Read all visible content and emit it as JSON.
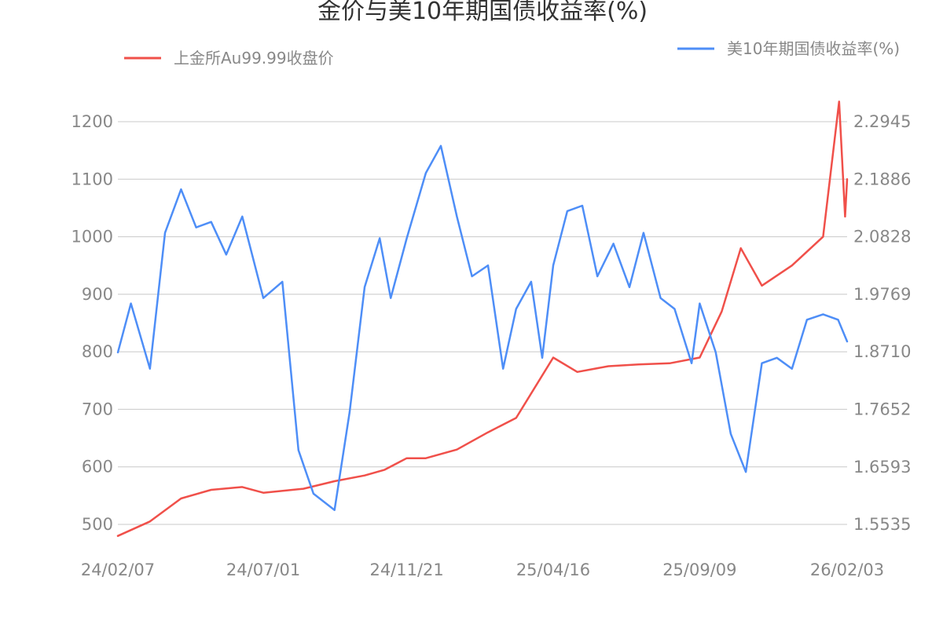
{
  "chart_data": {
    "type": "line",
    "title": "金价与美10年期国债收益率(%)",
    "x_tick_labels": [
      "24/02/07",
      "24/07/01",
      "24/11/21",
      "25/04/16",
      "25/09/09",
      "26/02/03"
    ],
    "left_axis": {
      "ticks": [
        "500",
        "600",
        "700",
        "800",
        "900",
        "1000",
        "1100",
        "1200"
      ],
      "ylim": [
        500,
        1200
      ]
    },
    "right_axis": {
      "ticks": [
        "1.5535",
        "1.6593",
        "1.7652",
        "1.8710",
        "1.9769",
        "2.0828",
        "2.1886",
        "2.2945"
      ],
      "ylim": [
        1.5535,
        2.2945
      ]
    },
    "grid": true,
    "legend_placement": "top",
    "series": [
      {
        "name": "上金所Au99.99收盘价",
        "axis": "left",
        "color": "#f0504a",
        "x": [
          "24/02/07",
          "24/03/10",
          "24/04/10",
          "24/05/10",
          "24/06/10",
          "24/07/01",
          "24/08/10",
          "24/09/10",
          "24/10/10",
          "24/10/30",
          "24/11/21",
          "24/12/10",
          "25/01/10",
          "25/02/10",
          "25/03/10",
          "25/04/16",
          "25/05/10",
          "25/06/10",
          "25/07/10",
          "25/08/10",
          "25/09/09",
          "25/10/01",
          "25/10/20",
          "25/11/10",
          "25/12/10",
          "26/01/10",
          "26/01/26",
          "26/02/01",
          "26/02/03"
        ],
        "values": [
          480,
          505,
          545,
          560,
          565,
          555,
          562,
          575,
          585,
          595,
          615,
          615,
          630,
          660,
          685,
          790,
          765,
          775,
          778,
          780,
          790,
          870,
          980,
          915,
          950,
          1000,
          1235,
          1035,
          1100
        ]
      },
      {
        "name": "美10年期国债收益率(%)",
        "axis": "right",
        "color": "#4e8ef7",
        "x": [
          "24/02/07",
          "24/02/20",
          "24/03/10",
          "24/03/25",
          "24/04/10",
          "24/04/25",
          "24/05/10",
          "24/05/25",
          "24/06/10",
          "24/07/01",
          "24/07/20",
          "24/08/05",
          "24/08/20",
          "24/09/10",
          "24/09/25",
          "24/10/10",
          "24/10/25",
          "24/11/05",
          "24/11/21",
          "24/12/10",
          "24/12/25",
          "25/01/10",
          "25/01/25",
          "25/02/10",
          "25/02/25",
          "25/03/10",
          "25/03/25",
          "25/04/05",
          "25/04/16",
          "25/04/30",
          "25/05/15",
          "25/05/30",
          "25/06/15",
          "25/07/01",
          "25/07/15",
          "25/08/01",
          "25/08/15",
          "25/09/01",
          "25/09/09",
          "25/09/25",
          "25/10/10",
          "25/10/25",
          "25/11/10",
          "25/11/25",
          "25/12/10",
          "25/12/25",
          "26/01/10",
          "26/01/25",
          "26/02/03"
        ],
        "values": [
          1.87,
          1.96,
          1.84,
          2.09,
          2.17,
          2.1,
          2.11,
          2.05,
          2.12,
          1.97,
          2.0,
          1.69,
          1.61,
          1.58,
          1.76,
          1.99,
          2.08,
          1.97,
          2.08,
          2.2,
          2.25,
          2.12,
          2.01,
          2.03,
          1.84,
          1.95,
          2.0,
          1.86,
          2.03,
          2.13,
          2.14,
          2.01,
          2.07,
          1.99,
          2.09,
          1.97,
          1.95,
          1.85,
          1.96,
          1.87,
          1.72,
          1.65,
          1.85,
          1.86,
          1.84,
          1.93,
          1.94,
          1.93,
          1.89
        ]
      }
    ]
  }
}
